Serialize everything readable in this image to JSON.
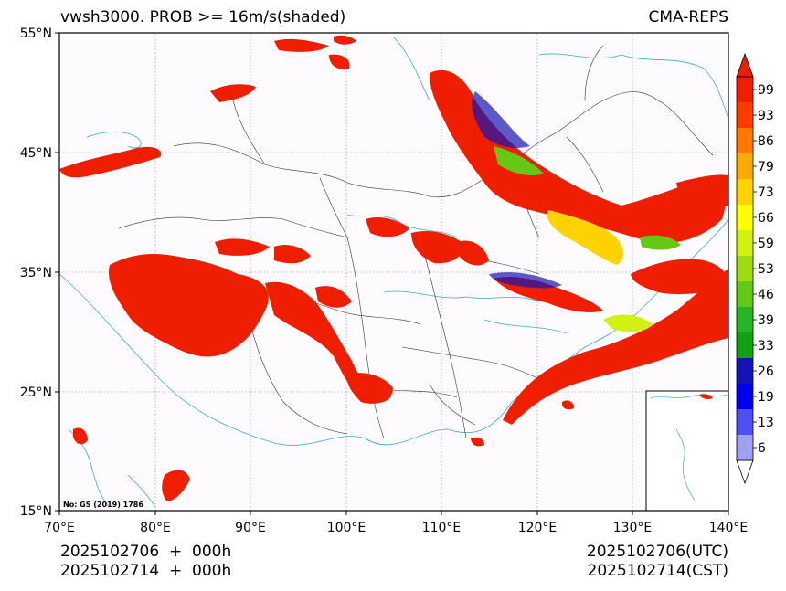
{
  "header": {
    "title": "vwsh3000. PROB >= 16m/s(shaded)",
    "model": "CMA-REPS"
  },
  "axes": {
    "lat_labels": [
      "55°N",
      "45°N",
      "35°N",
      "25°N",
      "15°N"
    ],
    "lon_labels": [
      "70°E",
      "80°E",
      "90°E",
      "100°E",
      "110°E",
      "120°E",
      "130°E",
      "140°E"
    ]
  },
  "colorbar": {
    "labels": [
      "6",
      "13",
      "19",
      "26",
      "33",
      "39",
      "46",
      "53",
      "59",
      "66",
      "73",
      "79",
      "86",
      "93",
      "99"
    ],
    "colors": [
      "#a0a0f0",
      "#5050f0",
      "#0000f0",
      "#1414b4",
      "#14a014",
      "#28b428",
      "#64c814",
      "#a0dc14",
      "#d2f014",
      "#ffff00",
      "#ffd200",
      "#ffaa00",
      "#ff7800",
      "#ff3c00",
      "#f01e00"
    ]
  },
  "map": {
    "approval_number": "No: GS (2019) 1786",
    "shade_color": "#f01e00"
  },
  "footer": {
    "left_line1": "2025102706  +  000h",
    "left_line2": "2025102714  +  000h",
    "right_line1": "2025102706(UTC)",
    "right_line2": "2025102714(CST)"
  }
}
